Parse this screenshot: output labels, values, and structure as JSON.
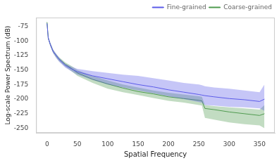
{
  "chart_data": {
    "type": "line",
    "x_label": "Spatial Frequency",
    "y_label": "Log-scale Power Spectrum (dB)",
    "x": [
      0,
      2,
      5,
      10,
      15,
      20,
      30,
      40,
      50,
      75,
      100,
      125,
      150,
      175,
      200,
      225,
      250,
      255,
      260,
      275,
      300,
      325,
      350,
      358
    ],
    "series": [
      {
        "name": "Fine-grained",
        "color": "#5b5be8",
        "values": [
          -70,
          -95,
          -105,
          -118,
          -125,
          -132,
          -142,
          -148,
          -153,
          -160,
          -165,
          -170,
          -175,
          -179,
          -184,
          -188,
          -192,
          -193,
          -194,
          -196,
          -199,
          -201,
          -204,
          -200
        ],
        "lower": [
          -70,
          -97,
          -108,
          -121,
          -129,
          -136,
          -146,
          -152,
          -158,
          -167,
          -175,
          -180,
          -185,
          -190,
          -195,
          -200,
          -205,
          -206,
          -210,
          -211,
          -213,
          -214,
          -216,
          -220
        ],
        "upper": [
          -66,
          -93,
          -102,
          -115,
          -122,
          -129,
          -139,
          -144,
          -148,
          -152,
          -155,
          -158,
          -160,
          -164,
          -168,
          -172,
          -175,
          -176,
          -178,
          -180,
          -182,
          -185,
          -188,
          -175
        ]
      },
      {
        "name": "Coarse-grained",
        "color": "#4f9a4f",
        "values": [
          -68,
          -95,
          -105,
          -118,
          -125,
          -131,
          -140,
          -147,
          -155,
          -166,
          -174,
          -181,
          -187,
          -191,
          -196,
          -199,
          -202,
          -203,
          -216,
          -218,
          -222,
          -225,
          -228,
          -225
        ],
        "lower": [
          -70,
          -97,
          -108,
          -121,
          -129,
          -135,
          -144,
          -152,
          -160,
          -172,
          -182,
          -188,
          -193,
          -198,
          -203,
          -206,
          -210,
          -211,
          -232,
          -235,
          -240,
          -243,
          -245,
          -250
        ],
        "upper": [
          -64,
          -93,
          -102,
          -115,
          -122,
          -128,
          -137,
          -143,
          -150,
          -160,
          -168,
          -175,
          -180,
          -185,
          -189,
          -192,
          -195,
          -196,
          -210,
          -212,
          -214,
          -216,
          -218,
          -210
        ]
      }
    ],
    "xlim": [
      -18,
      375
    ],
    "xticks": [
      0,
      50,
      100,
      150,
      200,
      250,
      300,
      350
    ],
    "ylim": [
      -258,
      -60
    ],
    "yticks": [
      -250,
      -225,
      -200,
      -175,
      -150,
      -125,
      -100,
      -75
    ],
    "grid": false,
    "legend": "upper right"
  }
}
